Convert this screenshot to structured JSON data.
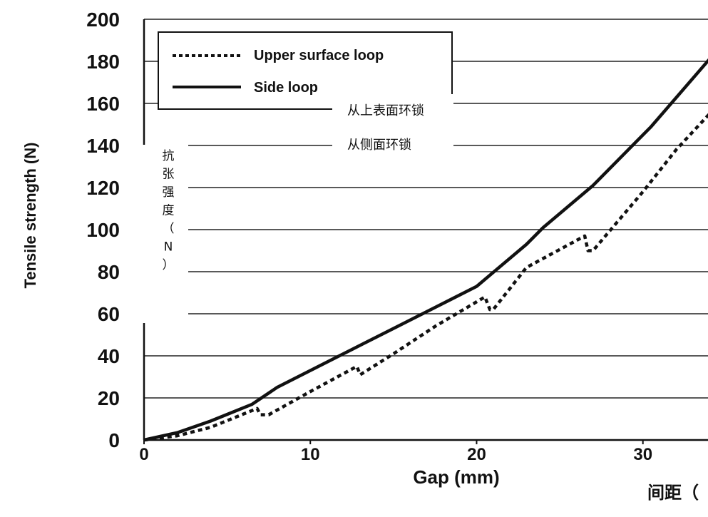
{
  "chart_data": {
    "type": "line",
    "xlabel": "Gap (mm)",
    "ylabel": "Tensile strength  (N)",
    "xlabel_cn": "间距（",
    "ylabel_cn": [
      "抗",
      "张",
      "强",
      "度",
      "（",
      "N",
      "）"
    ],
    "xlim": [
      0,
      34
    ],
    "ylim": [
      0,
      200
    ],
    "x_ticks": [
      0,
      10,
      20,
      30
    ],
    "y_ticks": [
      0,
      20,
      40,
      60,
      80,
      100,
      120,
      140,
      160,
      180,
      200
    ],
    "grid": "horizontal",
    "legend_position": "top-left",
    "series": [
      {
        "name": "Upper surface loop",
        "name_cn": "从上表面环锁",
        "style": "dotted",
        "points": [
          [
            0,
            0
          ],
          [
            2,
            2
          ],
          [
            4,
            6
          ],
          [
            6.8,
            15
          ],
          [
            7,
            12
          ],
          [
            7.5,
            12
          ],
          [
            10,
            23
          ],
          [
            12.8,
            35
          ],
          [
            13,
            31
          ],
          [
            15,
            41
          ],
          [
            17.5,
            54
          ],
          [
            20.5,
            68
          ],
          [
            20.8,
            62
          ],
          [
            21,
            62
          ],
          [
            23,
            82
          ],
          [
            26.5,
            97
          ],
          [
            26.7,
            90
          ],
          [
            27,
            90
          ],
          [
            30,
            118
          ],
          [
            32,
            138
          ],
          [
            34,
            155
          ]
        ]
      },
      {
        "name": "Side loop",
        "name_cn": "从侧面环锁",
        "style": "solid",
        "points": [
          [
            0,
            0
          ],
          [
            2,
            3.5
          ],
          [
            4,
            9
          ],
          [
            6.5,
            17
          ],
          [
            8,
            25
          ],
          [
            10,
            33
          ],
          [
            12.5,
            43
          ],
          [
            15,
            53
          ],
          [
            17.5,
            63
          ],
          [
            20,
            73
          ],
          [
            23,
            93
          ],
          [
            24,
            101
          ],
          [
            27,
            121
          ],
          [
            30.5,
            149
          ],
          [
            34,
            181
          ]
        ]
      }
    ]
  }
}
